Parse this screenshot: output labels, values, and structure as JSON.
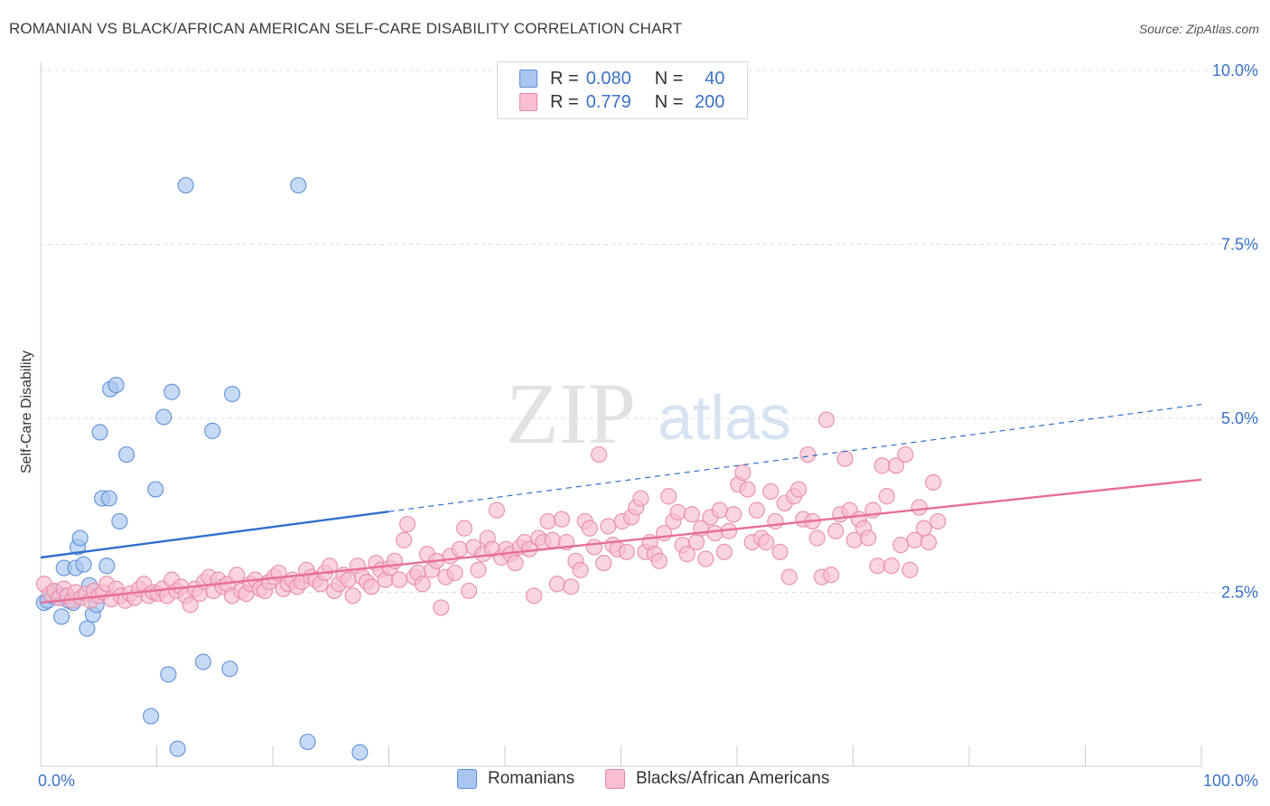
{
  "title": "ROMANIAN VS BLACK/AFRICAN AMERICAN SELF-CARE DISABILITY CORRELATION CHART",
  "source": "Source: ZipAtlas.com",
  "watermark": {
    "zip": "ZIP",
    "atlas": "atlas"
  },
  "legend": {
    "rows": [
      {
        "r_label": "R =",
        "r_value": "0.080",
        "n_label": "N =",
        "n_value": "40",
        "color": "#a9c6f0",
        "border": "#5b8ed6"
      },
      {
        "r_label": "R =",
        "r_value": "0.779",
        "n_label": "N =",
        "n_value": "200",
        "color": "#f7bfd0",
        "border": "#e889a8"
      }
    ]
  },
  "bottom_legend": [
    {
      "label": "Romanians",
      "color": "#a9c6f0",
      "border": "#5b8ed6"
    },
    {
      "label": "Blacks/African Americans",
      "color": "#f7bfd0",
      "border": "#e889a8"
    }
  ],
  "chart_data": {
    "type": "scatter",
    "title": "ROMANIAN VS BLACK/AFRICAN AMERICAN SELF-CARE DISABILITY CORRELATION CHART",
    "xlabel": "",
    "ylabel": "Self-Care Disability",
    "xlim": [
      0,
      100
    ],
    "ylim": [
      0,
      10
    ],
    "x_tick_labels": [
      "0.0%",
      "100.0%"
    ],
    "y_ticks": [
      2.5,
      5.0,
      7.5,
      10.0
    ],
    "y_tick_labels": [
      "2.5%",
      "5.0%",
      "7.5%",
      "10.0%"
    ],
    "grid": true,
    "legend_position": "top-center",
    "series": [
      {
        "name": "Romanians",
        "color": "#a9c6f0",
        "stroke": "#5b8ed6",
        "trend": {
          "x": [
            0,
            30
          ],
          "y": [
            3.0,
            3.66
          ],
          "color": "#2f6fcd",
          "dash_to": [
            100,
            5.2
          ]
        },
        "points": [
          [
            0.3,
            2.35
          ],
          [
            0.6,
            2.38
          ],
          [
            1.0,
            2.45
          ],
          [
            1.3,
            2.5
          ],
          [
            1.6,
            2.42
          ],
          [
            2.0,
            2.45
          ],
          [
            2.4,
            2.38
          ],
          [
            1.8,
            2.15
          ],
          [
            2.0,
            2.85
          ],
          [
            2.8,
            2.35
          ],
          [
            3.0,
            2.85
          ],
          [
            3.2,
            3.15
          ],
          [
            3.4,
            3.28
          ],
          [
            3.7,
            2.9
          ],
          [
            4.0,
            1.98
          ],
          [
            4.2,
            2.6
          ],
          [
            4.5,
            2.18
          ],
          [
            4.8,
            2.32
          ],
          [
            5.1,
            4.8
          ],
          [
            5.3,
            3.85
          ],
          [
            5.7,
            2.88
          ],
          [
            5.9,
            3.85
          ],
          [
            6.0,
            5.42
          ],
          [
            6.5,
            5.48
          ],
          [
            6.8,
            3.52
          ],
          [
            7.4,
            4.48
          ],
          [
            9.5,
            0.72
          ],
          [
            9.9,
            3.98
          ],
          [
            11.0,
            1.32
          ],
          [
            11.3,
            5.38
          ],
          [
            11.8,
            0.25
          ],
          [
            10.6,
            5.02
          ],
          [
            12.5,
            8.35
          ],
          [
            14.0,
            1.5
          ],
          [
            14.8,
            4.82
          ],
          [
            16.3,
            1.4
          ],
          [
            16.5,
            5.35
          ],
          [
            22.2,
            8.35
          ],
          [
            23.0,
            0.35
          ],
          [
            27.5,
            0.2
          ]
        ]
      },
      {
        "name": "Blacks/African Americans",
        "color": "#f7bfd0",
        "stroke": "#e889a8",
        "trend": {
          "x": [
            0,
            100
          ],
          "y": [
            2.35,
            4.12
          ],
          "color": "#e76e98"
        },
        "points": [
          [
            0.3,
            2.62
          ],
          [
            0.8,
            2.48
          ],
          [
            1.2,
            2.52
          ],
          [
            1.6,
            2.42
          ],
          [
            2.0,
            2.55
          ],
          [
            2.3,
            2.45
          ],
          [
            2.7,
            2.38
          ],
          [
            3.0,
            2.5
          ],
          [
            3.5,
            2.42
          ],
          [
            3.9,
            2.48
          ],
          [
            4.3,
            2.38
          ],
          [
            4.6,
            2.52
          ],
          [
            5.0,
            2.45
          ],
          [
            5.4,
            2.5
          ],
          [
            5.7,
            2.62
          ],
          [
            6.1,
            2.4
          ],
          [
            6.5,
            2.55
          ],
          [
            6.9,
            2.45
          ],
          [
            7.3,
            2.38
          ],
          [
            7.7,
            2.48
          ],
          [
            8.1,
            2.42
          ],
          [
            8.5,
            2.55
          ],
          [
            8.9,
            2.62
          ],
          [
            9.3,
            2.45
          ],
          [
            9.7,
            2.5
          ],
          [
            10.1,
            2.48
          ],
          [
            10.5,
            2.55
          ],
          [
            10.9,
            2.45
          ],
          [
            11.3,
            2.68
          ],
          [
            11.7,
            2.52
          ],
          [
            12.1,
            2.58
          ],
          [
            12.5,
            2.45
          ],
          [
            12.9,
            2.32
          ],
          [
            13.3,
            2.55
          ],
          [
            13.7,
            2.48
          ],
          [
            14.1,
            2.65
          ],
          [
            14.5,
            2.72
          ],
          [
            14.9,
            2.52
          ],
          [
            15.3,
            2.68
          ],
          [
            15.7,
            2.58
          ],
          [
            16.1,
            2.62
          ],
          [
            16.5,
            2.45
          ],
          [
            16.9,
            2.75
          ],
          [
            17.3,
            2.52
          ],
          [
            17.7,
            2.48
          ],
          [
            18.1,
            2.62
          ],
          [
            18.5,
            2.68
          ],
          [
            18.9,
            2.55
          ],
          [
            19.3,
            2.52
          ],
          [
            19.7,
            2.65
          ],
          [
            20.1,
            2.72
          ],
          [
            20.5,
            2.78
          ],
          [
            20.9,
            2.55
          ],
          [
            21.3,
            2.62
          ],
          [
            21.7,
            2.68
          ],
          [
            22.1,
            2.58
          ],
          [
            22.5,
            2.65
          ],
          [
            22.9,
            2.82
          ],
          [
            23.3,
            2.72
          ],
          [
            23.7,
            2.68
          ],
          [
            24.1,
            2.62
          ],
          [
            24.5,
            2.78
          ],
          [
            24.9,
            2.88
          ],
          [
            25.3,
            2.52
          ],
          [
            25.7,
            2.62
          ],
          [
            26.1,
            2.75
          ],
          [
            26.5,
            2.68
          ],
          [
            26.9,
            2.45
          ],
          [
            27.3,
            2.88
          ],
          [
            27.7,
            2.72
          ],
          [
            28.1,
            2.65
          ],
          [
            28.5,
            2.58
          ],
          [
            28.9,
            2.92
          ],
          [
            29.3,
            2.82
          ],
          [
            29.7,
            2.68
          ],
          [
            30.1,
            2.85
          ],
          [
            30.5,
            2.95
          ],
          [
            30.9,
            2.68
          ],
          [
            31.3,
            3.25
          ],
          [
            31.6,
            3.48
          ],
          [
            32.2,
            2.72
          ],
          [
            32.5,
            2.78
          ],
          [
            32.9,
            2.62
          ],
          [
            33.3,
            3.05
          ],
          [
            33.7,
            2.82
          ],
          [
            34.1,
            2.95
          ],
          [
            34.5,
            2.28
          ],
          [
            34.9,
            2.72
          ],
          [
            35.3,
            3.02
          ],
          [
            35.7,
            2.78
          ],
          [
            36.1,
            3.12
          ],
          [
            36.5,
            3.42
          ],
          [
            36.9,
            2.52
          ],
          [
            37.3,
            3.15
          ],
          [
            37.7,
            2.82
          ],
          [
            38.1,
            3.05
          ],
          [
            38.5,
            3.28
          ],
          [
            38.9,
            3.12
          ],
          [
            39.3,
            3.68
          ],
          [
            39.7,
            3.0
          ],
          [
            40.1,
            3.12
          ],
          [
            40.5,
            3.05
          ],
          [
            40.9,
            2.92
          ],
          [
            41.3,
            3.15
          ],
          [
            41.7,
            3.22
          ],
          [
            42.1,
            3.12
          ],
          [
            42.5,
            2.45
          ],
          [
            42.9,
            3.28
          ],
          [
            43.3,
            3.22
          ],
          [
            43.7,
            3.52
          ],
          [
            44.1,
            3.25
          ],
          [
            44.5,
            2.62
          ],
          [
            44.9,
            3.55
          ],
          [
            45.3,
            3.22
          ],
          [
            45.7,
            2.58
          ],
          [
            46.1,
            2.95
          ],
          [
            46.5,
            2.82
          ],
          [
            46.9,
            3.52
          ],
          [
            47.3,
            3.42
          ],
          [
            47.7,
            3.15
          ],
          [
            48.1,
            4.48
          ],
          [
            48.5,
            2.92
          ],
          [
            48.9,
            3.45
          ],
          [
            49.3,
            3.18
          ],
          [
            49.7,
            3.12
          ],
          [
            50.1,
            3.52
          ],
          [
            50.5,
            3.08
          ],
          [
            50.9,
            3.58
          ],
          [
            51.3,
            3.72
          ],
          [
            51.7,
            3.85
          ],
          [
            52.1,
            3.08
          ],
          [
            52.5,
            3.22
          ],
          [
            52.9,
            3.05
          ],
          [
            53.3,
            2.95
          ],
          [
            53.7,
            3.35
          ],
          [
            54.1,
            3.88
          ],
          [
            54.5,
            3.52
          ],
          [
            54.9,
            3.65
          ],
          [
            55.3,
            3.18
          ],
          [
            55.7,
            3.05
          ],
          [
            56.1,
            3.62
          ],
          [
            56.5,
            3.22
          ],
          [
            56.9,
            3.42
          ],
          [
            57.3,
            2.98
          ],
          [
            57.7,
            3.58
          ],
          [
            58.1,
            3.35
          ],
          [
            58.5,
            3.68
          ],
          [
            58.9,
            3.08
          ],
          [
            59.3,
            3.38
          ],
          [
            59.7,
            3.62
          ],
          [
            60.1,
            4.05
          ],
          [
            60.5,
            4.22
          ],
          [
            60.9,
            3.98
          ],
          [
            61.3,
            3.22
          ],
          [
            61.7,
            3.68
          ],
          [
            62.1,
            3.28
          ],
          [
            62.5,
            3.22
          ],
          [
            62.9,
            3.95
          ],
          [
            63.3,
            3.52
          ],
          [
            63.7,
            3.08
          ],
          [
            64.1,
            3.78
          ],
          [
            64.5,
            2.72
          ],
          [
            64.9,
            3.88
          ],
          [
            65.3,
            3.98
          ],
          [
            65.7,
            3.55
          ],
          [
            66.1,
            4.48
          ],
          [
            66.5,
            3.52
          ],
          [
            66.9,
            3.28
          ],
          [
            67.3,
            2.72
          ],
          [
            67.7,
            4.98
          ],
          [
            68.1,
            2.75
          ],
          [
            68.5,
            3.38
          ],
          [
            68.9,
            3.62
          ],
          [
            69.3,
            4.42
          ],
          [
            69.7,
            3.68
          ],
          [
            70.1,
            3.25
          ],
          [
            70.5,
            3.55
          ],
          [
            70.9,
            3.42
          ],
          [
            71.3,
            3.28
          ],
          [
            71.7,
            3.68
          ],
          [
            72.1,
            2.88
          ],
          [
            72.5,
            4.32
          ],
          [
            72.9,
            3.88
          ],
          [
            73.3,
            2.88
          ],
          [
            73.7,
            4.32
          ],
          [
            74.1,
            3.18
          ],
          [
            74.5,
            4.48
          ],
          [
            74.9,
            2.82
          ],
          [
            75.3,
            3.25
          ],
          [
            75.7,
            3.72
          ],
          [
            76.1,
            3.42
          ],
          [
            76.5,
            3.22
          ],
          [
            76.9,
            4.08
          ],
          [
            77.3,
            3.52
          ]
        ]
      }
    ]
  }
}
